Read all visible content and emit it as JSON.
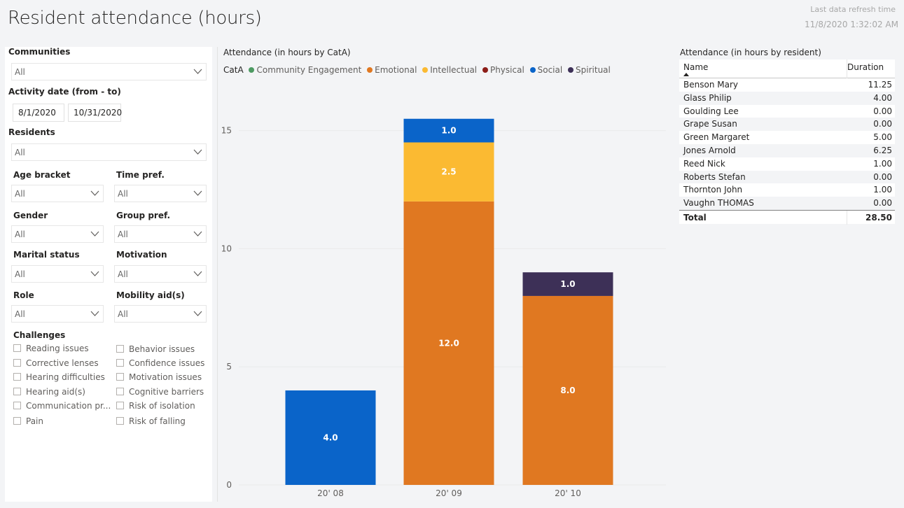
{
  "header": {
    "title": "Resident attendance (hours)",
    "refresh_label": "Last data refresh time",
    "refresh_time": "11/8/2020 1:32:02 AM"
  },
  "filters": {
    "communities": {
      "label": "Communities",
      "value": "All"
    },
    "activity_date": {
      "label": "Activity date (from - to)",
      "from": "8/1/2020",
      "to": "10/31/2020"
    },
    "residents": {
      "label": "Residents",
      "value": "All"
    },
    "age_bracket": {
      "label": "Age bracket",
      "value": "All"
    },
    "time_pref": {
      "label": "Time pref.",
      "value": "All"
    },
    "gender": {
      "label": "Gender",
      "value": "All"
    },
    "group_pref": {
      "label": "Group pref.",
      "value": "All"
    },
    "marital_status": {
      "label": "Marital status",
      "value": "All"
    },
    "motivation": {
      "label": "Motivation",
      "value": "All"
    },
    "role": {
      "label": "Role",
      "value": "All"
    },
    "mobility_aid": {
      "label": "Mobility aid(s)",
      "value": "All"
    },
    "challenges": {
      "label": "Challenges",
      "items": [
        "Reading issues",
        "Behavior issues",
        "Corrective lenses",
        "Confidence issues",
        "Hearing difficulties",
        "Motivation issues",
        "Hearing aid(s)",
        "Cognitive barriers",
        "Communication pr...",
        "Risk of isolation",
        "Pain",
        "Risk of falling"
      ]
    }
  },
  "chart_data": {
    "type": "bar",
    "stacked": true,
    "title": "Attendance (in hours by CatA)",
    "legend_title": "CatA",
    "legend_position": "top-left",
    "categories": [
      "20' 08",
      "20' 09",
      "20' 10"
    ],
    "series": [
      {
        "name": "Community Engagement",
        "color": "#4d9a62",
        "values": [
          0,
          0,
          0
        ]
      },
      {
        "name": "Emotional",
        "color": "#e07821",
        "values": [
          0,
          12.0,
          8.0
        ]
      },
      {
        "name": "Intellectual",
        "color": "#fbba32",
        "values": [
          0,
          2.5,
          0
        ]
      },
      {
        "name": "Physical",
        "color": "#8c1d18",
        "values": [
          0,
          0,
          0
        ]
      },
      {
        "name": "Social",
        "color": "#0a64c9",
        "values": [
          4.0,
          1.0,
          0
        ]
      },
      {
        "name": "Spiritual",
        "color": "#3d3057",
        "values": [
          0,
          0,
          1.0
        ]
      }
    ],
    "yticks": [
      "0",
      "5",
      "10",
      "15"
    ],
    "ylim": [
      0,
      16.5
    ],
    "grid": true
  },
  "resident_table": {
    "title": "Attendance (in hours by resident)",
    "col_name": "Name",
    "col_duration": "Duration",
    "rows": [
      {
        "name": "Benson Mary",
        "duration": "11.25"
      },
      {
        "name": "Glass Philip",
        "duration": "4.00"
      },
      {
        "name": "Goulding Lee",
        "duration": "0.00"
      },
      {
        "name": "Grape Susan",
        "duration": "0.00"
      },
      {
        "name": "Green Margaret",
        "duration": "5.00"
      },
      {
        "name": "Jones Arnold",
        "duration": "6.25"
      },
      {
        "name": "Reed Nick",
        "duration": "1.00"
      },
      {
        "name": "Roberts Stefan",
        "duration": "0.00"
      },
      {
        "name": "Thornton John",
        "duration": "1.00"
      },
      {
        "name": "Vaughn THOMAS",
        "duration": "0.00"
      }
    ],
    "total_label": "Total",
    "total_value": "28.50"
  }
}
